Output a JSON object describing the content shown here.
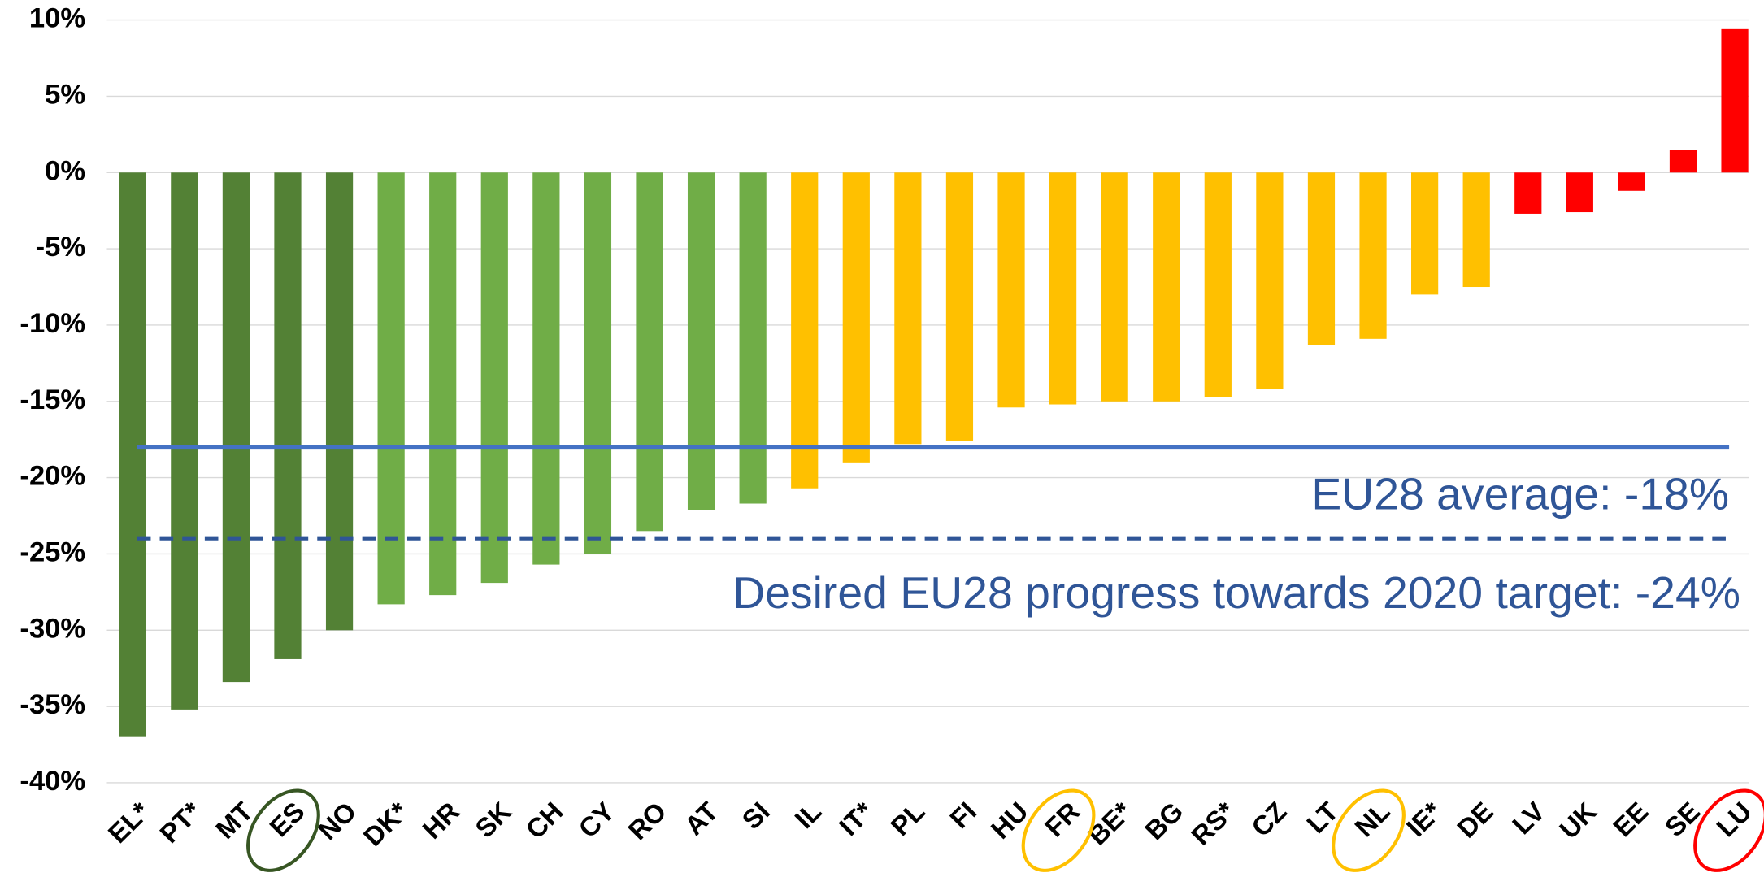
{
  "chart_data": {
    "type": "bar",
    "categories": [
      "EL*",
      "PT*",
      "MT",
      "ES",
      "NO",
      "DK*",
      "HR",
      "SK",
      "CH",
      "CY",
      "RO",
      "AT",
      "SI",
      "IL",
      "IT*",
      "PL",
      "FI",
      "HU",
      "FR",
      "BE*",
      "BG",
      "RS*",
      "CZ",
      "LT",
      "NL",
      "IE*",
      "DE",
      "LV",
      "UK",
      "EE",
      "SE",
      "LU"
    ],
    "values": [
      -37.0,
      -35.2,
      -33.4,
      -31.9,
      -30.0,
      -28.3,
      -27.7,
      -26.9,
      -25.7,
      -25.0,
      -23.5,
      -22.1,
      -21.7,
      -20.7,
      -19.0,
      -17.8,
      -17.6,
      -15.4,
      -15.2,
      -15.0,
      -15.0,
      -14.7,
      -14.2,
      -11.3,
      -10.9,
      -8.0,
      -7.5,
      -2.7,
      -2.6,
      -1.2,
      1.5,
      9.4
    ],
    "colors": [
      "#538135",
      "#538135",
      "#538135",
      "#538135",
      "#538135",
      "#70ad47",
      "#70ad47",
      "#70ad47",
      "#70ad47",
      "#70ad47",
      "#70ad47",
      "#70ad47",
      "#70ad47",
      "#ffc000",
      "#ffc000",
      "#ffc000",
      "#ffc000",
      "#ffc000",
      "#ffc000",
      "#ffc000",
      "#ffc000",
      "#ffc000",
      "#ffc000",
      "#ffc000",
      "#ffc000",
      "#ffc000",
      "#ffc000",
      "#ff0000",
      "#ff0000",
      "#ff0000",
      "#ff0000",
      "#ff0000"
    ],
    "ylim": [
      -40,
      10
    ],
    "yticks": [
      {
        "value": -40,
        "label": "-40%"
      },
      {
        "value": -35,
        "label": "-35%"
      },
      {
        "value": -30,
        "label": "-30%"
      },
      {
        "value": -25,
        "label": "-25%"
      },
      {
        "value": -20,
        "label": "-20%"
      },
      {
        "value": -15,
        "label": "-15%"
      },
      {
        "value": -10,
        "label": "-10%"
      },
      {
        "value": -5,
        "label": "-5%"
      },
      {
        "value": 0,
        "label": "0%"
      },
      {
        "value": 5,
        "label": "5%"
      },
      {
        "value": 10,
        "label": "10%"
      }
    ],
    "grid": true,
    "reference_lines": [
      {
        "value": -18,
        "label": "EU28 average: -18%",
        "style": "solid",
        "color": "#4472c4"
      },
      {
        "value": -24,
        "label": "Desired EU28 progress towards 2020 target: -24%",
        "style": "dashed",
        "color": "#2f5597"
      }
    ],
    "highlights": [
      {
        "category": "ES",
        "color": "#375623"
      },
      {
        "category": "FR",
        "color": "#ffc000"
      },
      {
        "category": "NL",
        "color": "#ffc000"
      },
      {
        "category": "LU",
        "color": "#ff0000"
      }
    ]
  }
}
